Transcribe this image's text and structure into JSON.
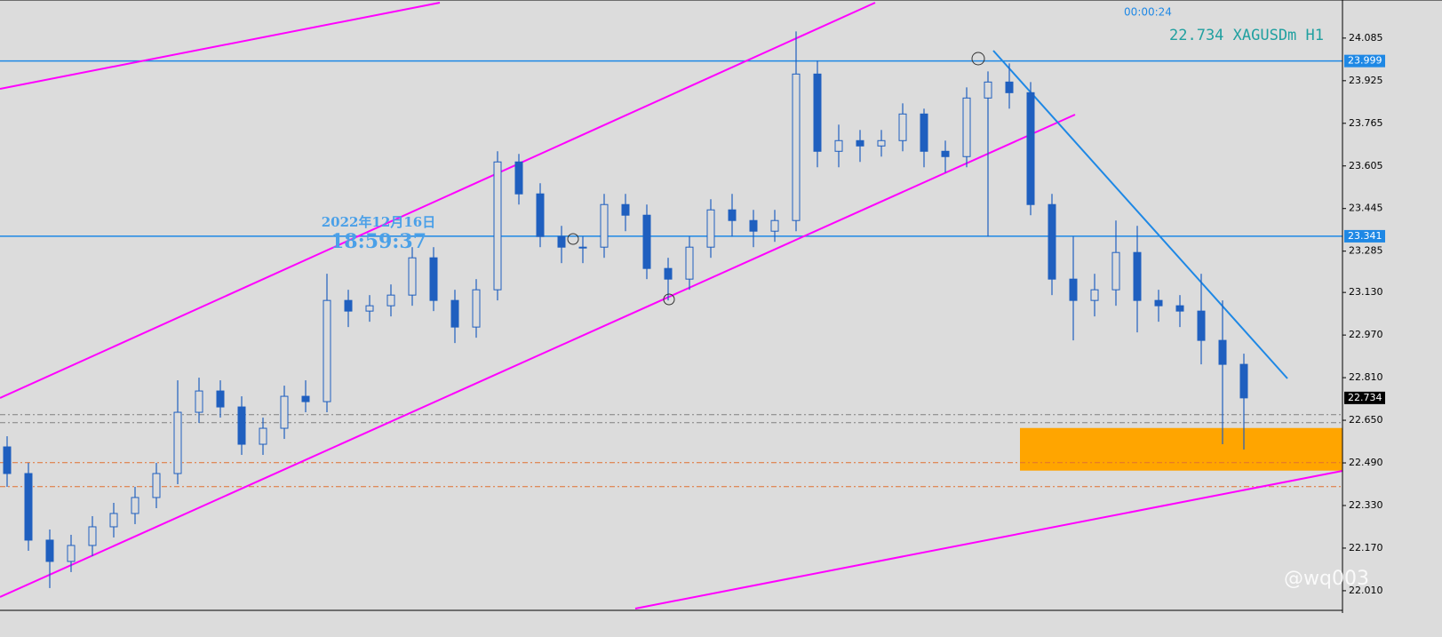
{
  "chart_data": {
    "type": "candlestick",
    "countdown": "00:00:24",
    "symbol_label": "22.734 XAGUSDm H1",
    "date_label": "2022年12月16日",
    "time_label": "18:59:37",
    "watermark": "@wq003",
    "open": [
      22.55,
      22.45,
      22.2,
      22.12,
      22.18,
      22.25,
      22.3,
      22.36,
      22.45,
      22.68,
      22.76,
      22.7,
      22.56,
      22.62,
      22.74,
      22.72,
      23.1,
      23.06,
      23.08,
      23.12,
      23.26,
      23.1,
      23.0,
      23.14,
      23.62,
      23.5,
      23.34,
      23.3,
      23.3,
      23.46,
      23.42,
      23.22,
      23.18,
      23.3,
      23.44,
      23.4,
      23.36,
      23.4,
      23.95,
      23.66,
      23.7,
      23.68,
      23.7,
      23.8,
      23.66,
      23.64,
      23.86,
      23.92,
      23.88,
      23.46,
      23.18,
      23.1,
      23.14,
      23.28,
      23.1,
      23.08,
      23.06,
      22.95,
      22.86
    ],
    "high": [
      22.59,
      22.49,
      22.24,
      22.22,
      22.29,
      22.34,
      22.4,
      22.49,
      22.8,
      22.81,
      22.8,
      22.74,
      22.66,
      22.78,
      22.8,
      23.2,
      23.14,
      23.12,
      23.16,
      23.3,
      23.3,
      23.14,
      23.18,
      23.66,
      23.65,
      23.54,
      23.38,
      23.34,
      23.5,
      23.5,
      23.46,
      23.26,
      23.34,
      23.48,
      23.5,
      23.44,
      23.44,
      24.11,
      24.0,
      23.76,
      23.74,
      23.74,
      23.84,
      23.82,
      23.7,
      23.9,
      23.96,
      23.99,
      23.92,
      23.5,
      23.34,
      23.2,
      23.4,
      23.38,
      23.14,
      23.12,
      23.2,
      23.1,
      22.9
    ],
    "low": [
      22.4,
      22.16,
      22.02,
      22.08,
      22.14,
      22.21,
      22.26,
      22.32,
      22.41,
      22.64,
      22.66,
      22.52,
      22.52,
      22.58,
      22.68,
      22.68,
      23.0,
      23.02,
      23.04,
      23.08,
      23.06,
      22.94,
      22.96,
      23.1,
      23.46,
      23.3,
      23.24,
      23.24,
      23.26,
      23.36,
      23.18,
      23.1,
      23.14,
      23.26,
      23.34,
      23.3,
      23.32,
      23.36,
      23.6,
      23.6,
      23.62,
      23.64,
      23.66,
      23.6,
      23.58,
      23.6,
      23.34,
      23.82,
      23.42,
      23.12,
      22.95,
      23.04,
      23.08,
      22.98,
      23.02,
      23.0,
      22.86,
      22.56,
      22.54
    ],
    "close": [
      22.45,
      22.2,
      22.12,
      22.18,
      22.25,
      22.3,
      22.36,
      22.45,
      22.68,
      22.76,
      22.7,
      22.56,
      22.62,
      22.74,
      22.72,
      23.1,
      23.06,
      23.08,
      23.12,
      23.26,
      23.1,
      23.0,
      23.14,
      23.62,
      23.5,
      23.34,
      23.3,
      23.3,
      23.46,
      23.42,
      23.22,
      23.18,
      23.3,
      23.44,
      23.4,
      23.36,
      23.4,
      23.95,
      23.66,
      23.7,
      23.68,
      23.7,
      23.8,
      23.66,
      23.64,
      23.86,
      23.92,
      23.88,
      23.46,
      23.18,
      23.1,
      23.14,
      23.28,
      23.1,
      23.08,
      23.06,
      22.95,
      22.86,
      22.734
    ],
    "color": "#1f5fbf",
    "ylim": [
      21.943,
      24.228
    ],
    "yticks": [
      24.085,
      23.925,
      23.765,
      23.605,
      23.445,
      23.285,
      {
        "value": 23.13,
        "label": "23.130"
      },
      {
        "value": 22.97,
        "label": "22.970"
      },
      {
        "value": 22.81,
        "label": "22.810"
      },
      {
        "value": 22.65,
        "label": "22.650"
      },
      {
        "value": 22.49,
        "label": "22.490"
      },
      {
        "value": 22.33,
        "label": "22.330"
      },
      {
        "value": 22.17,
        "label": "22.170"
      },
      {
        "value": 22.01,
        "label": "22.010"
      }
    ],
    "levels": [
      {
        "value": 23.999,
        "color": "#1e88e5"
      },
      {
        "value": 23.341,
        "color": "#1e88e5"
      },
      {
        "value": 22.734,
        "color": "#000000"
      }
    ],
    "dashed_levels": [
      {
        "value": 22.671,
        "color": "#808080"
      },
      {
        "value": 22.641,
        "color": "#808080"
      },
      {
        "value": 22.491,
        "color": "#e07030"
      },
      {
        "value": 22.401,
        "color": "#e07030"
      }
    ],
    "zone": {
      "from": 22.461,
      "to": 22.621,
      "color": "#ffa500"
    }
  }
}
